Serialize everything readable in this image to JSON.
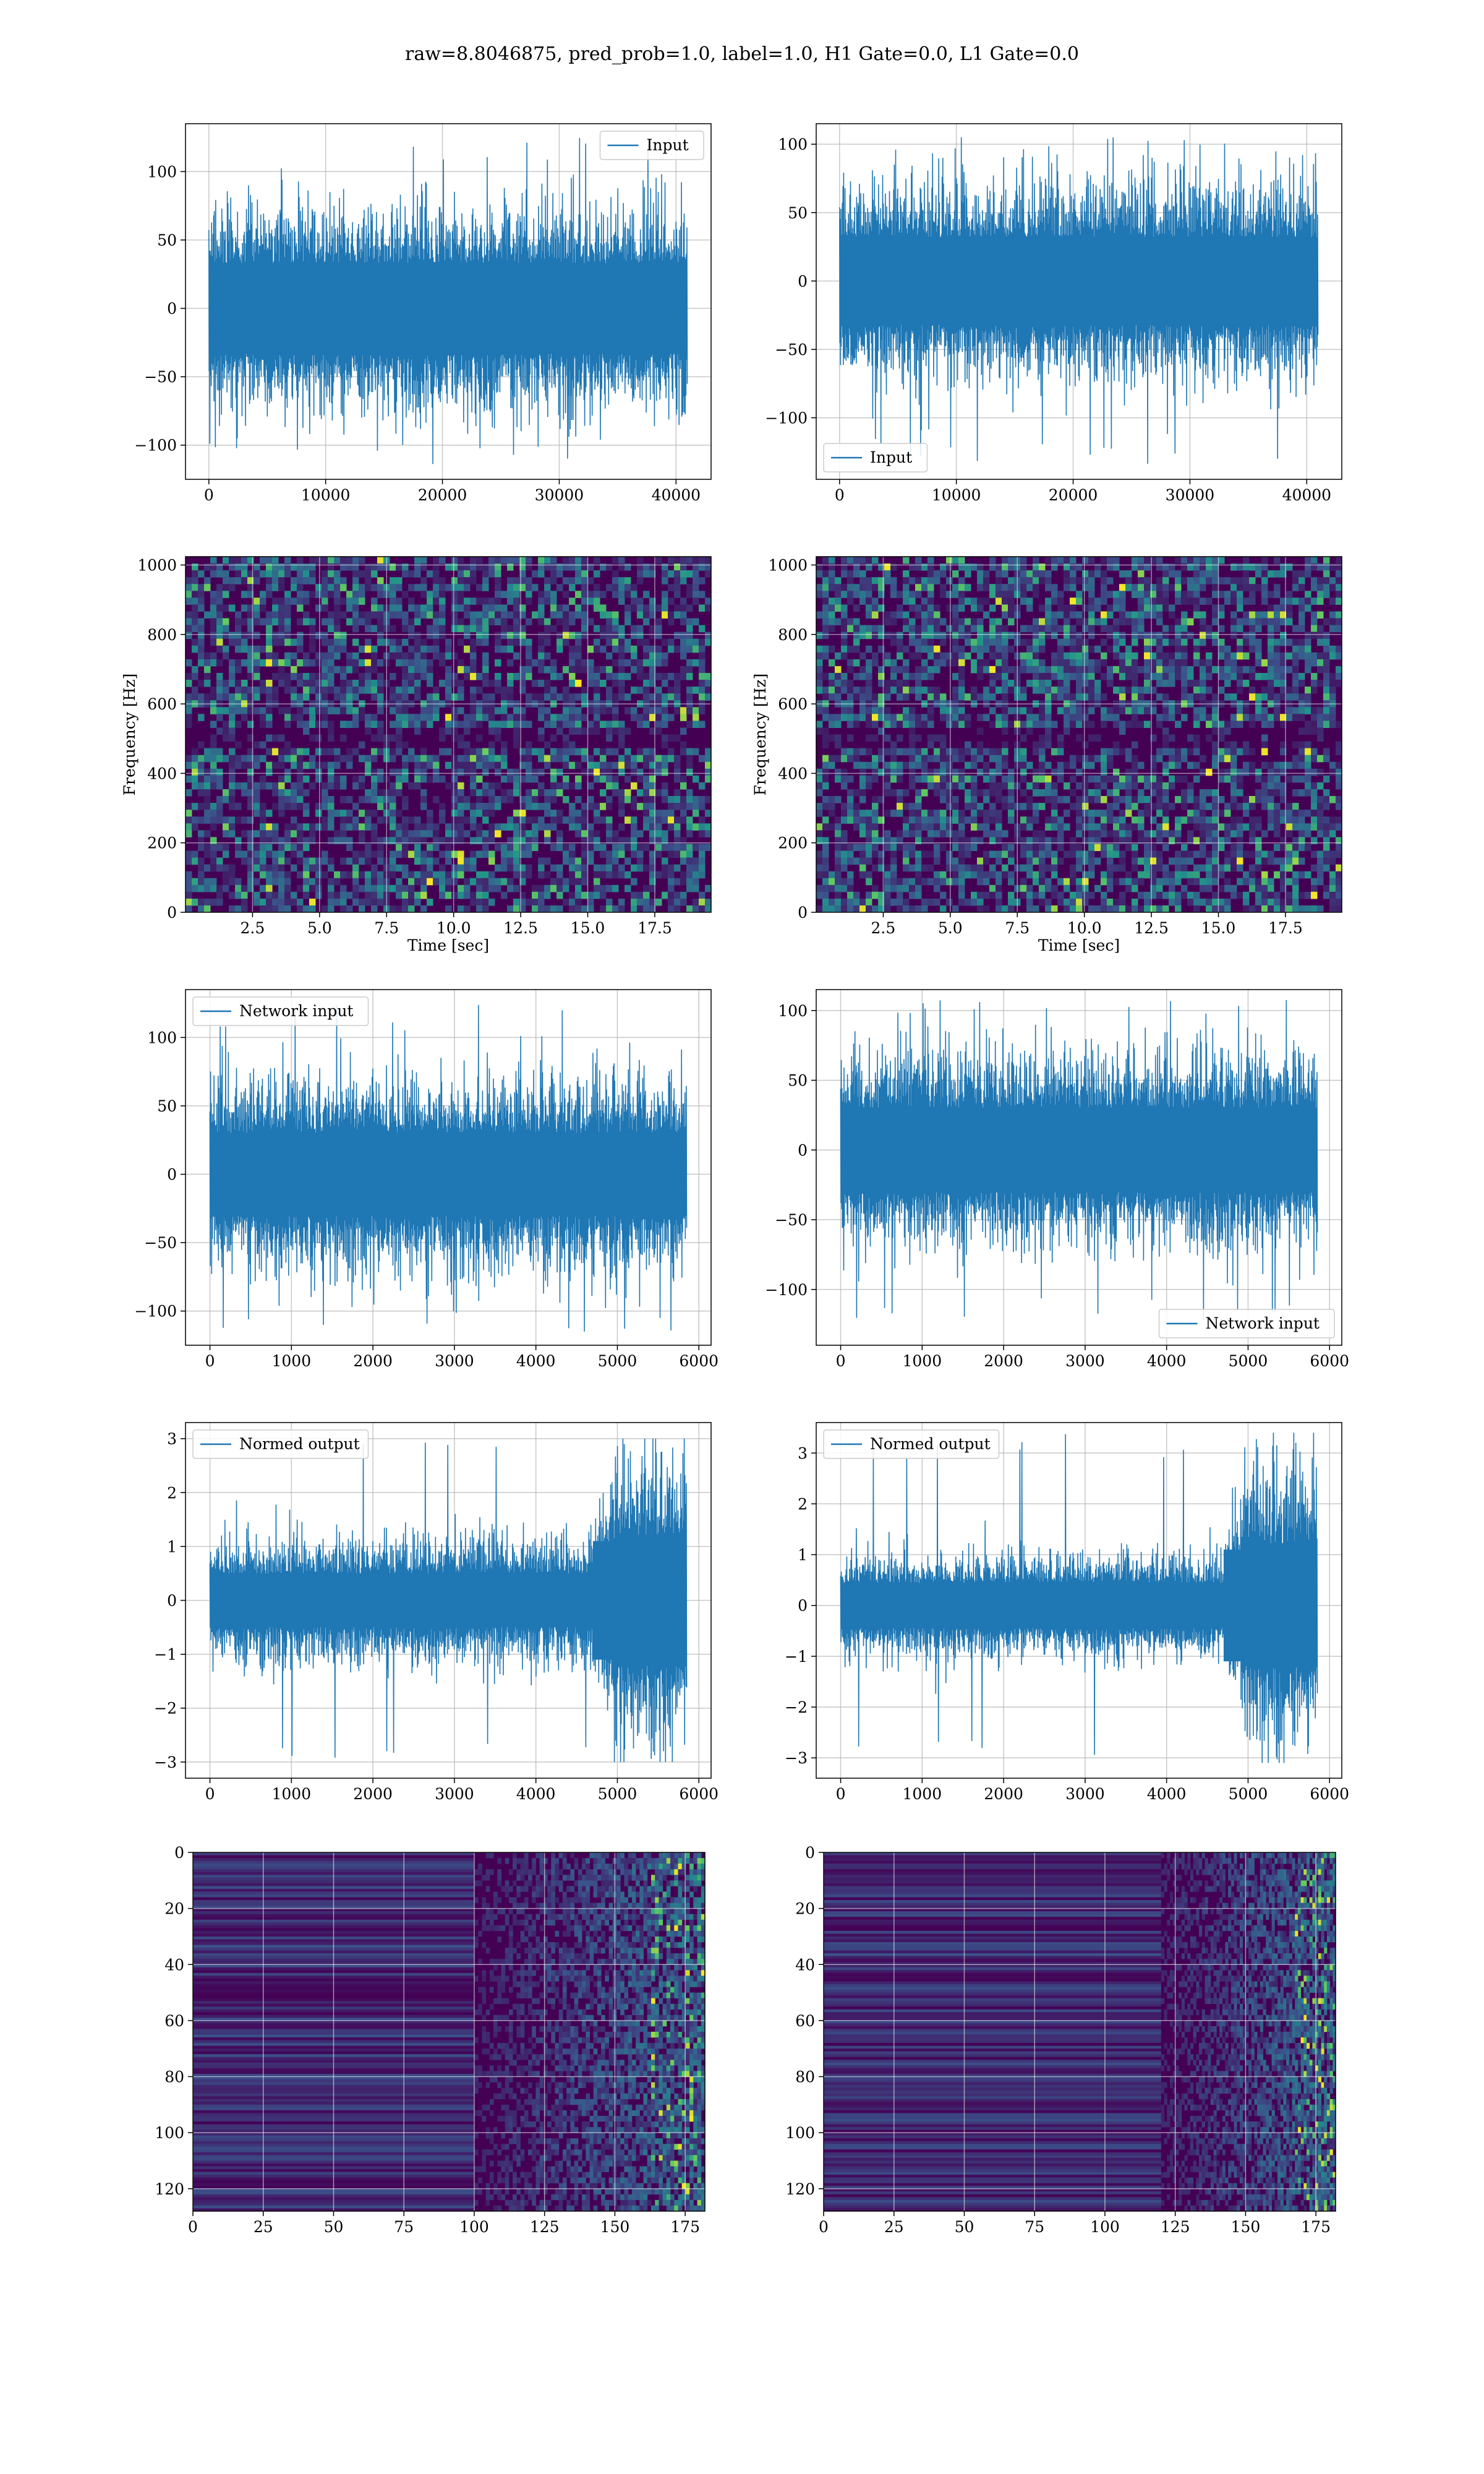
{
  "figure": {
    "title": "raw=8.8046875, pred_prob=1.0, label=1.0, H1 Gate=0.0, L1 Gate=0.0"
  },
  "colors": {
    "line": "#1f77b4",
    "grid": "#b0b0b0",
    "viridis_dark": "#440154",
    "viridis_mid": "#21918c",
    "viridis_bright": "#fde725"
  },
  "chart_data": [
    {
      "id": "input-h1",
      "type": "line",
      "title": "",
      "xlabel": "",
      "ylabel": "",
      "series": [
        {
          "name": "Input",
          "points": 40960,
          "center": 0,
          "typical_amplitude": 60,
          "peak_max": 125,
          "peak_min": -120
        }
      ],
      "xlim": [
        -2000,
        43000
      ],
      "ylim": [
        -125,
        135
      ],
      "xticks": [
        0,
        10000,
        20000,
        30000,
        40000
      ],
      "yticks": [
        -100,
        -50,
        0,
        50,
        100
      ],
      "legend": "upper-right",
      "grid": true
    },
    {
      "id": "input-l1",
      "type": "line",
      "title": "",
      "xlabel": "",
      "ylabel": "",
      "series": [
        {
          "name": "Input",
          "points": 40960,
          "center": 0,
          "typical_amplitude": 58,
          "peak_max": 105,
          "peak_min": -135
        }
      ],
      "xlim": [
        -2000,
        43000
      ],
      "ylim": [
        -145,
        115
      ],
      "xticks": [
        0,
        10000,
        20000,
        30000,
        40000
      ],
      "yticks": [
        -100,
        -50,
        0,
        50,
        100
      ],
      "legend": "lower-left",
      "grid": true
    },
    {
      "id": "spectrogram-h1",
      "type": "heatmap",
      "title": "",
      "xlabel": "Time [sec]",
      "ylabel": "Frequency [Hz]",
      "xlim": [
        0,
        19.6
      ],
      "ylim": [
        0,
        1024
      ],
      "xticks": [
        2.5,
        5.0,
        7.5,
        10.0,
        12.5,
        15.0,
        17.5
      ],
      "yticks": [
        0,
        200,
        400,
        600,
        800,
        1000
      ],
      "colormap": "viridis",
      "grid": true
    },
    {
      "id": "spectrogram-l1",
      "type": "heatmap",
      "title": "",
      "xlabel": "Time [sec]",
      "ylabel": "Frequency [Hz]",
      "xlim": [
        0,
        19.6
      ],
      "ylim": [
        0,
        1024
      ],
      "xticks": [
        2.5,
        5.0,
        7.5,
        10.0,
        12.5,
        15.0,
        17.5
      ],
      "yticks": [
        0,
        200,
        400,
        600,
        800,
        1000
      ],
      "colormap": "viridis",
      "grid": true
    },
    {
      "id": "network-input-h1",
      "type": "line",
      "title": "",
      "xlabel": "",
      "ylabel": "",
      "series": [
        {
          "name": "Network input",
          "points": 5850,
          "center": 0,
          "typical_amplitude": 55,
          "peak_max": 125,
          "peak_min": -115
        }
      ],
      "xlim": [
        -300,
        6150
      ],
      "ylim": [
        -125,
        135
      ],
      "xticks": [
        0,
        1000,
        2000,
        3000,
        4000,
        5000,
        6000
      ],
      "yticks": [
        -100,
        -50,
        0,
        50,
        100
      ],
      "legend": "upper-left",
      "grid": true
    },
    {
      "id": "network-input-l1",
      "type": "line",
      "title": "",
      "xlabel": "",
      "ylabel": "",
      "series": [
        {
          "name": "Network input",
          "points": 5850,
          "center": 0,
          "typical_amplitude": 55,
          "peak_max": 108,
          "peak_min": -125
        }
      ],
      "xlim": [
        -300,
        6150
      ],
      "ylim": [
        -140,
        115
      ],
      "xticks": [
        0,
        1000,
        2000,
        3000,
        4000,
        5000,
        6000
      ],
      "yticks": [
        -100,
        -50,
        0,
        50,
        100
      ],
      "legend": "lower-right",
      "grid": true
    },
    {
      "id": "normed-output-h1",
      "type": "line",
      "title": "",
      "xlabel": "",
      "ylabel": "",
      "series": [
        {
          "name": "Normed output",
          "points": 5850,
          "center": 0,
          "typical_amplitude": 0.9,
          "burst_start": 4700,
          "burst_amplitude": 2.2,
          "peak_max": 3.0,
          "peak_min": -3.0
        }
      ],
      "xlim": [
        -300,
        6150
      ],
      "ylim": [
        -3.3,
        3.3
      ],
      "xticks": [
        0,
        1000,
        2000,
        3000,
        4000,
        5000,
        6000
      ],
      "yticks": [
        -3,
        -2,
        -1,
        0,
        1,
        2,
        3
      ],
      "legend": "upper-left",
      "grid": true
    },
    {
      "id": "normed-output-l1",
      "type": "line",
      "title": "",
      "xlabel": "",
      "ylabel": "",
      "series": [
        {
          "name": "Normed output",
          "points": 5850,
          "center": 0,
          "typical_amplitude": 0.8,
          "burst_start": 4700,
          "burst_amplitude": 2.2,
          "peak_max": 3.4,
          "peak_min": -3.1
        }
      ],
      "xlim": [
        -300,
        6150
      ],
      "ylim": [
        -3.4,
        3.6
      ],
      "xticks": [
        0,
        1000,
        2000,
        3000,
        4000,
        5000,
        6000
      ],
      "yticks": [
        -3,
        -2,
        -1,
        0,
        1,
        2,
        3
      ],
      "legend": "upper-left",
      "grid": true
    },
    {
      "id": "feature-map-h1",
      "type": "heatmap",
      "title": "",
      "xlabel": "",
      "ylabel": "",
      "xlim": [
        0,
        182
      ],
      "ylim": [
        128,
        0
      ],
      "xticks": [
        0,
        25,
        50,
        75,
        100,
        125,
        150,
        175
      ],
      "yticks": [
        0,
        20,
        40,
        60,
        80,
        100,
        120
      ],
      "colormap": "viridis",
      "grid": true,
      "activity_start": 100
    },
    {
      "id": "feature-map-l1",
      "type": "heatmap",
      "title": "",
      "xlabel": "",
      "ylabel": "",
      "xlim": [
        0,
        182
      ],
      "ylim": [
        128,
        0
      ],
      "xticks": [
        0,
        25,
        50,
        75,
        100,
        125,
        150,
        175
      ],
      "yticks": [
        0,
        20,
        40,
        60,
        80,
        100,
        120
      ],
      "colormap": "viridis",
      "grid": true,
      "activity_start": 120
    }
  ]
}
